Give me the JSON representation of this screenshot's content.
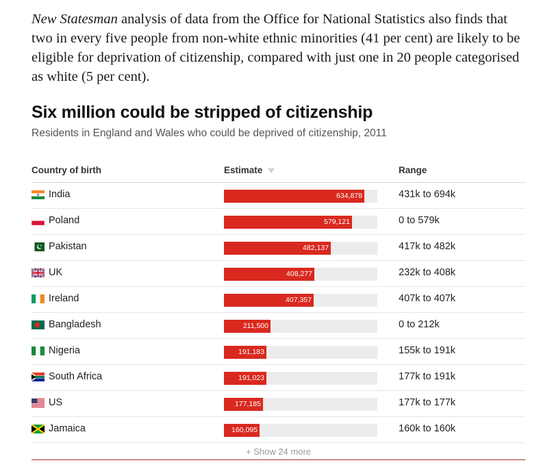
{
  "article": {
    "publication": "New Statesman",
    "paragraph_rest": " analysis of data from the Office for National Statistics also finds that two in every five people from non-white ethnic minorities (41 per cent) are likely to be eligible for deprivation of citizenship, compared with just one in 20 people categorised as white (5 per cent)."
  },
  "chart_data": {
    "type": "table",
    "title": "Six million could be stripped of citizenship",
    "subtitle": "Residents in England and Wales who could be deprived of citizenship, 2011",
    "columns": [
      "Country of birth",
      "Estimate",
      "Range"
    ],
    "sort_column": "Estimate",
    "bar_max": 694000,
    "bar_color": "#d9291f",
    "track_color": "#ececec",
    "rows": [
      {
        "country": "India",
        "flag": "india-flag-icon",
        "estimate": 634878,
        "estimate_label": "634,878",
        "range": "431k to 694k"
      },
      {
        "country": "Poland",
        "flag": "poland-flag-icon",
        "estimate": 579121,
        "estimate_label": "579,121",
        "range": "0 to 579k"
      },
      {
        "country": "Pakistan",
        "flag": "pakistan-flag-icon",
        "estimate": 482137,
        "estimate_label": "482,137",
        "range": "417k to 482k"
      },
      {
        "country": "UK",
        "flag": "uk-flag-icon",
        "estimate": 408277,
        "estimate_label": "408,277",
        "range": "232k to 408k"
      },
      {
        "country": "Ireland",
        "flag": "ireland-flag-icon",
        "estimate": 407357,
        "estimate_label": "407,357",
        "range": "407k to 407k"
      },
      {
        "country": "Bangladesh",
        "flag": "bangladesh-flag-icon",
        "estimate": 211500,
        "estimate_label": "211,500",
        "range": "0 to 212k"
      },
      {
        "country": "Nigeria",
        "flag": "nigeria-flag-icon",
        "estimate": 191183,
        "estimate_label": "191,183",
        "range": "155k to 191k"
      },
      {
        "country": "South Africa",
        "flag": "south-africa-flag-icon",
        "estimate": 191023,
        "estimate_label": "191,023",
        "range": "177k to 191k"
      },
      {
        "country": "US",
        "flag": "us-flag-icon",
        "estimate": 177185,
        "estimate_label": "177,185",
        "range": "177k to 177k"
      },
      {
        "country": "Jamaica",
        "flag": "jamaica-flag-icon",
        "estimate": 160095,
        "estimate_label": "160,095",
        "range": "160k to 160k"
      }
    ],
    "show_more_label": "+ Show 24 more"
  }
}
